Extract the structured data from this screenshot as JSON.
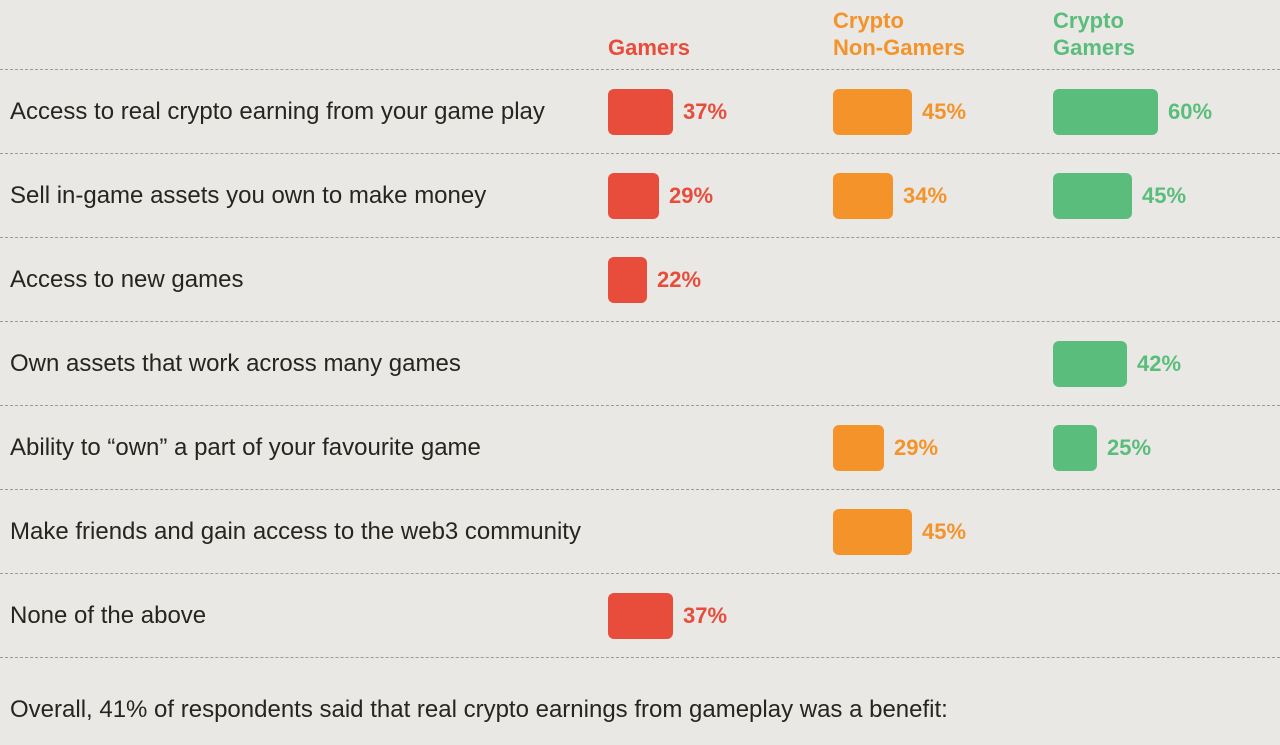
{
  "page": {
    "background": "#e9e8e5",
    "text_color": "#26251f",
    "divider_color": "#9b9b99",
    "footer_text": "Overall, 41% of respondents said that real crypto earnings from gameplay was a benefit:"
  },
  "chart_data": {
    "type": "bar",
    "orientation": "horizontal",
    "value_suffix": "%",
    "xlim": [
      0,
      100
    ],
    "grid": "dashed-row-dividers",
    "legend_position": "column-headers-top",
    "categories": [
      "Access to real crypto earning  from your game play",
      "Sell in-game assets you own to make money",
      "Access to new games",
      "Own assets that work across many games",
      "Ability to “own” a part of your favourite game",
      "Make friends and gain access to the web3 community",
      "None of the above"
    ],
    "groups": [
      {
        "name": "Gamers",
        "header": "Gamers",
        "color": "#e84c3b"
      },
      {
        "name": "Crypto Non-Gamers",
        "header": "Crypto\nNon-Gamers",
        "color": "#f5932b"
      },
      {
        "name": "Crypto Gamers",
        "header": "Crypto\nGamers",
        "color": "#5abd7c"
      }
    ],
    "series": [
      {
        "name": "Gamers",
        "values": [
          37,
          29,
          22,
          null,
          null,
          null,
          37
        ]
      },
      {
        "name": "Crypto Non-Gamers",
        "values": [
          45,
          34,
          null,
          null,
          29,
          45,
          null
        ]
      },
      {
        "name": "Crypto Gamers",
        "values": [
          60,
          45,
          null,
          42,
          25,
          null,
          null
        ]
      }
    ]
  }
}
